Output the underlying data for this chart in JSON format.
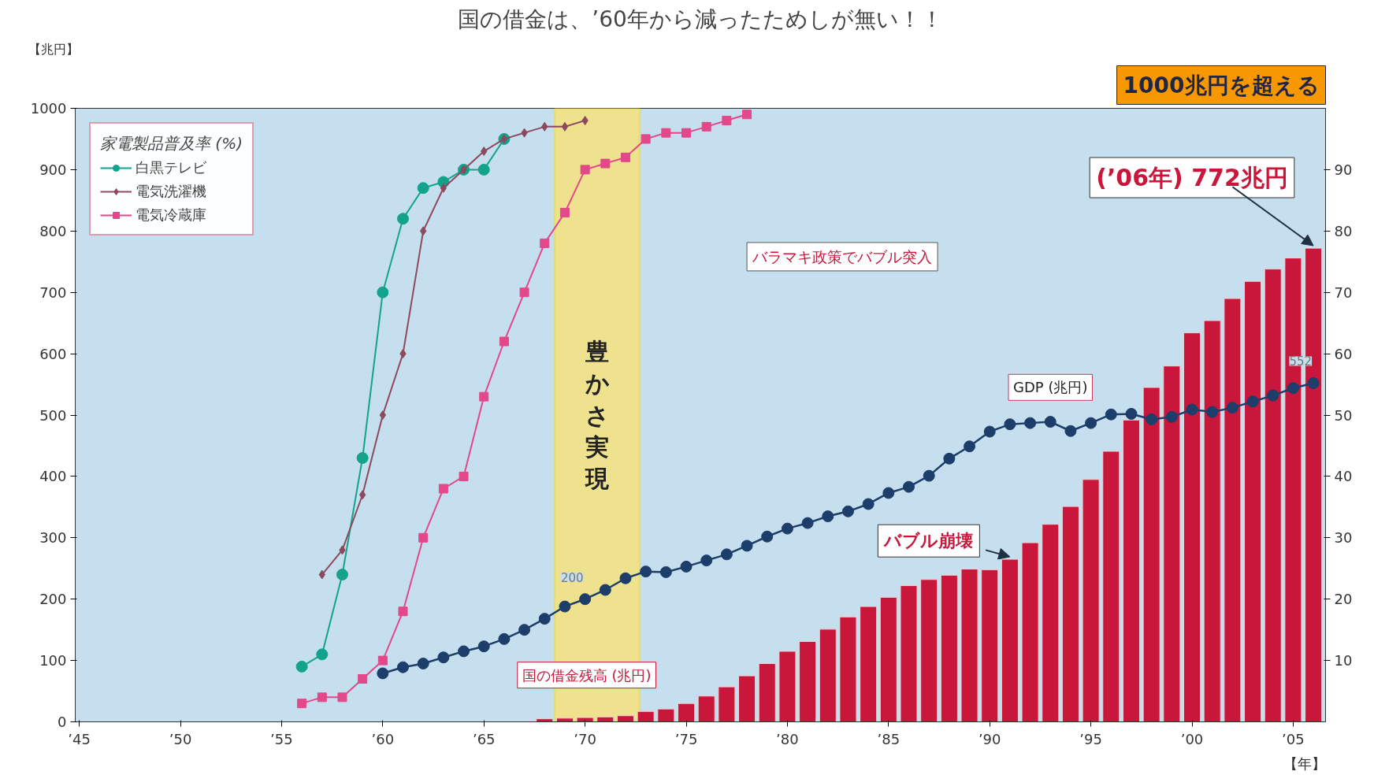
{
  "chart_data": {
    "type": "line",
    "title": "国の借金は、’60年から減ったためしが無い！！",
    "xlabel": "【年】",
    "ylabel": "【兆円】",
    "legend_title": "家電製品普及率 (%)",
    "legend": "top left",
    "xlim": [
      1944.8,
      2006.6
    ],
    "xticks": [
      {
        "value": 1945,
        "label": "’45"
      },
      {
        "value": 1950,
        "label": "’50"
      },
      {
        "value": 1955,
        "label": "’55"
      },
      {
        "value": 1960,
        "label": "’60"
      },
      {
        "value": 1965,
        "label": "’65"
      },
      {
        "value": 1970,
        "label": "’70"
      },
      {
        "value": 1975,
        "label": "’75"
      },
      {
        "value": 1980,
        "label": "’80"
      },
      {
        "value": 1985,
        "label": "’85"
      },
      {
        "value": 1990,
        "label": "’90"
      },
      {
        "value": 1995,
        "label": "’95"
      },
      {
        "value": 2000,
        "label": "’00"
      },
      {
        "value": 2005,
        "label": "’05"
      }
    ],
    "ylim": [
      0,
      1000
    ],
    "yticks": [
      0,
      100,
      200,
      300,
      400,
      500,
      600,
      700,
      800,
      900,
      1000
    ],
    "y2lim": [
      0,
      100
    ],
    "y2ticks": [
      10,
      20,
      30,
      40,
      50,
      60,
      70,
      80,
      90
    ],
    "bands": [
      {
        "axis": "x",
        "from": 1968.5,
        "to": 1972.7,
        "label": "豊かさ実現",
        "color": "#f6e37c"
      }
    ],
    "annotations": [
      "1000兆円を超える",
      "バラマキ政策でバブル突入",
      {
        "text": "バブル崩壊",
        "x": 1991,
        "y": 265
      },
      {
        "text": "(’06年) 772兆円",
        "x": 2006,
        "y": 772
      }
    ],
    "series": [
      {
        "name": "国の借金残高 (兆円)",
        "type": "bar",
        "color": "#c8173a",
        "x": [
          1968,
          1969,
          1970,
          1971,
          1972,
          1973,
          1974,
          1975,
          1976,
          1977,
          1978,
          1979,
          1980,
          1981,
          1982,
          1983,
          1984,
          1985,
          1986,
          1987,
          1988,
          1989,
          1990,
          1991,
          1992,
          1993,
          1994,
          1995,
          1996,
          1997,
          1998,
          1999,
          2000,
          2001,
          2002,
          2003,
          2004,
          2005,
          2006
        ],
        "values": [
          5,
          6,
          7,
          8,
          10,
          17,
          21,
          30,
          42,
          57,
          75,
          95,
          115,
          131,
          151,
          171,
          188,
          203,
          222,
          232,
          239,
          249,
          248,
          265,
          292,
          322,
          351,
          395,
          441,
          492,
          545,
          580,
          634,
          654,
          690,
          718,
          738,
          756,
          772
        ]
      },
      {
        "name": "GDP (兆円)",
        "marker": "circle",
        "color": "#1d3d6b",
        "x": [
          1960,
          1961,
          1962,
          1963,
          1964,
          1965,
          1966,
          1967,
          1968,
          1969,
          1970,
          1971,
          1972,
          1973,
          1974,
          1975,
          1976,
          1977,
          1978,
          1979,
          1980,
          1981,
          1982,
          1983,
          1984,
          1985,
          1986,
          1987,
          1988,
          1989,
          1990,
          1991,
          1992,
          1993,
          1994,
          1995,
          1996,
          1997,
          1998,
          1999,
          2000,
          2001,
          2002,
          2003,
          2004,
          2005,
          2006
        ],
        "values": [
          79,
          89,
          95,
          105,
          115,
          123,
          135,
          150,
          168,
          188,
          200,
          215,
          234,
          245,
          244,
          253,
          263,
          273,
          287,
          302,
          315,
          324,
          335,
          343,
          355,
          373,
          383,
          401,
          429,
          449,
          473,
          485,
          487,
          489,
          474,
          487,
          501,
          502,
          493,
          497,
          509,
          505,
          512,
          522,
          532,
          544,
          552
        ],
        "value_labels": [
          null,
          null,
          null,
          null,
          null,
          null,
          null,
          null,
          null,
          null,
          "200",
          null,
          null,
          null,
          null,
          null,
          null,
          null,
          null,
          null,
          null,
          null,
          null,
          null,
          null,
          null,
          null,
          null,
          null,
          null,
          null,
          null,
          null,
          null,
          null,
          null,
          null,
          null,
          null,
          null,
          null,
          null,
          null,
          null,
          null,
          null,
          "552"
        ]
      },
      {
        "name": "白黒テレビ",
        "axis": "y2",
        "marker": "circle",
        "color": "#13a38c",
        "x": [
          1956,
          1957,
          1958,
          1959,
          1960,
          1961,
          1962,
          1963,
          1964,
          1965,
          1966
        ],
        "values": [
          9,
          11,
          24,
          43,
          70,
          82,
          87,
          88,
          90,
          90,
          95
        ]
      },
      {
        "name": "電気洗濯機",
        "axis": "y2",
        "marker": "diamond",
        "color": "#8c4a5c",
        "x": [
          1957,
          1958,
          1959,
          1960,
          1961,
          1962,
          1963,
          1964,
          1965,
          1966,
          1967,
          1968,
          1969,
          1970
        ],
        "values": [
          24,
          28,
          37,
          50,
          60,
          80,
          87,
          90,
          93,
          95,
          96,
          97,
          97,
          98
        ]
      },
      {
        "name": "電気冷蔵庫",
        "axis": "y2",
        "marker": "square",
        "color": "#e2488a",
        "x": [
          1956,
          1957,
          1958,
          1959,
          1960,
          1961,
          1962,
          1963,
          1964,
          1965,
          1966,
          1967,
          1968,
          1969,
          1970,
          1971,
          1972,
          1973,
          1974,
          1975,
          1976,
          1977,
          1978
        ],
        "values": [
          3,
          4,
          4,
          7,
          10,
          18,
          30,
          38,
          40,
          53,
          62,
          70,
          78,
          83,
          90,
          91,
          92,
          95,
          96,
          96,
          97,
          98,
          99
        ]
      }
    ]
  }
}
